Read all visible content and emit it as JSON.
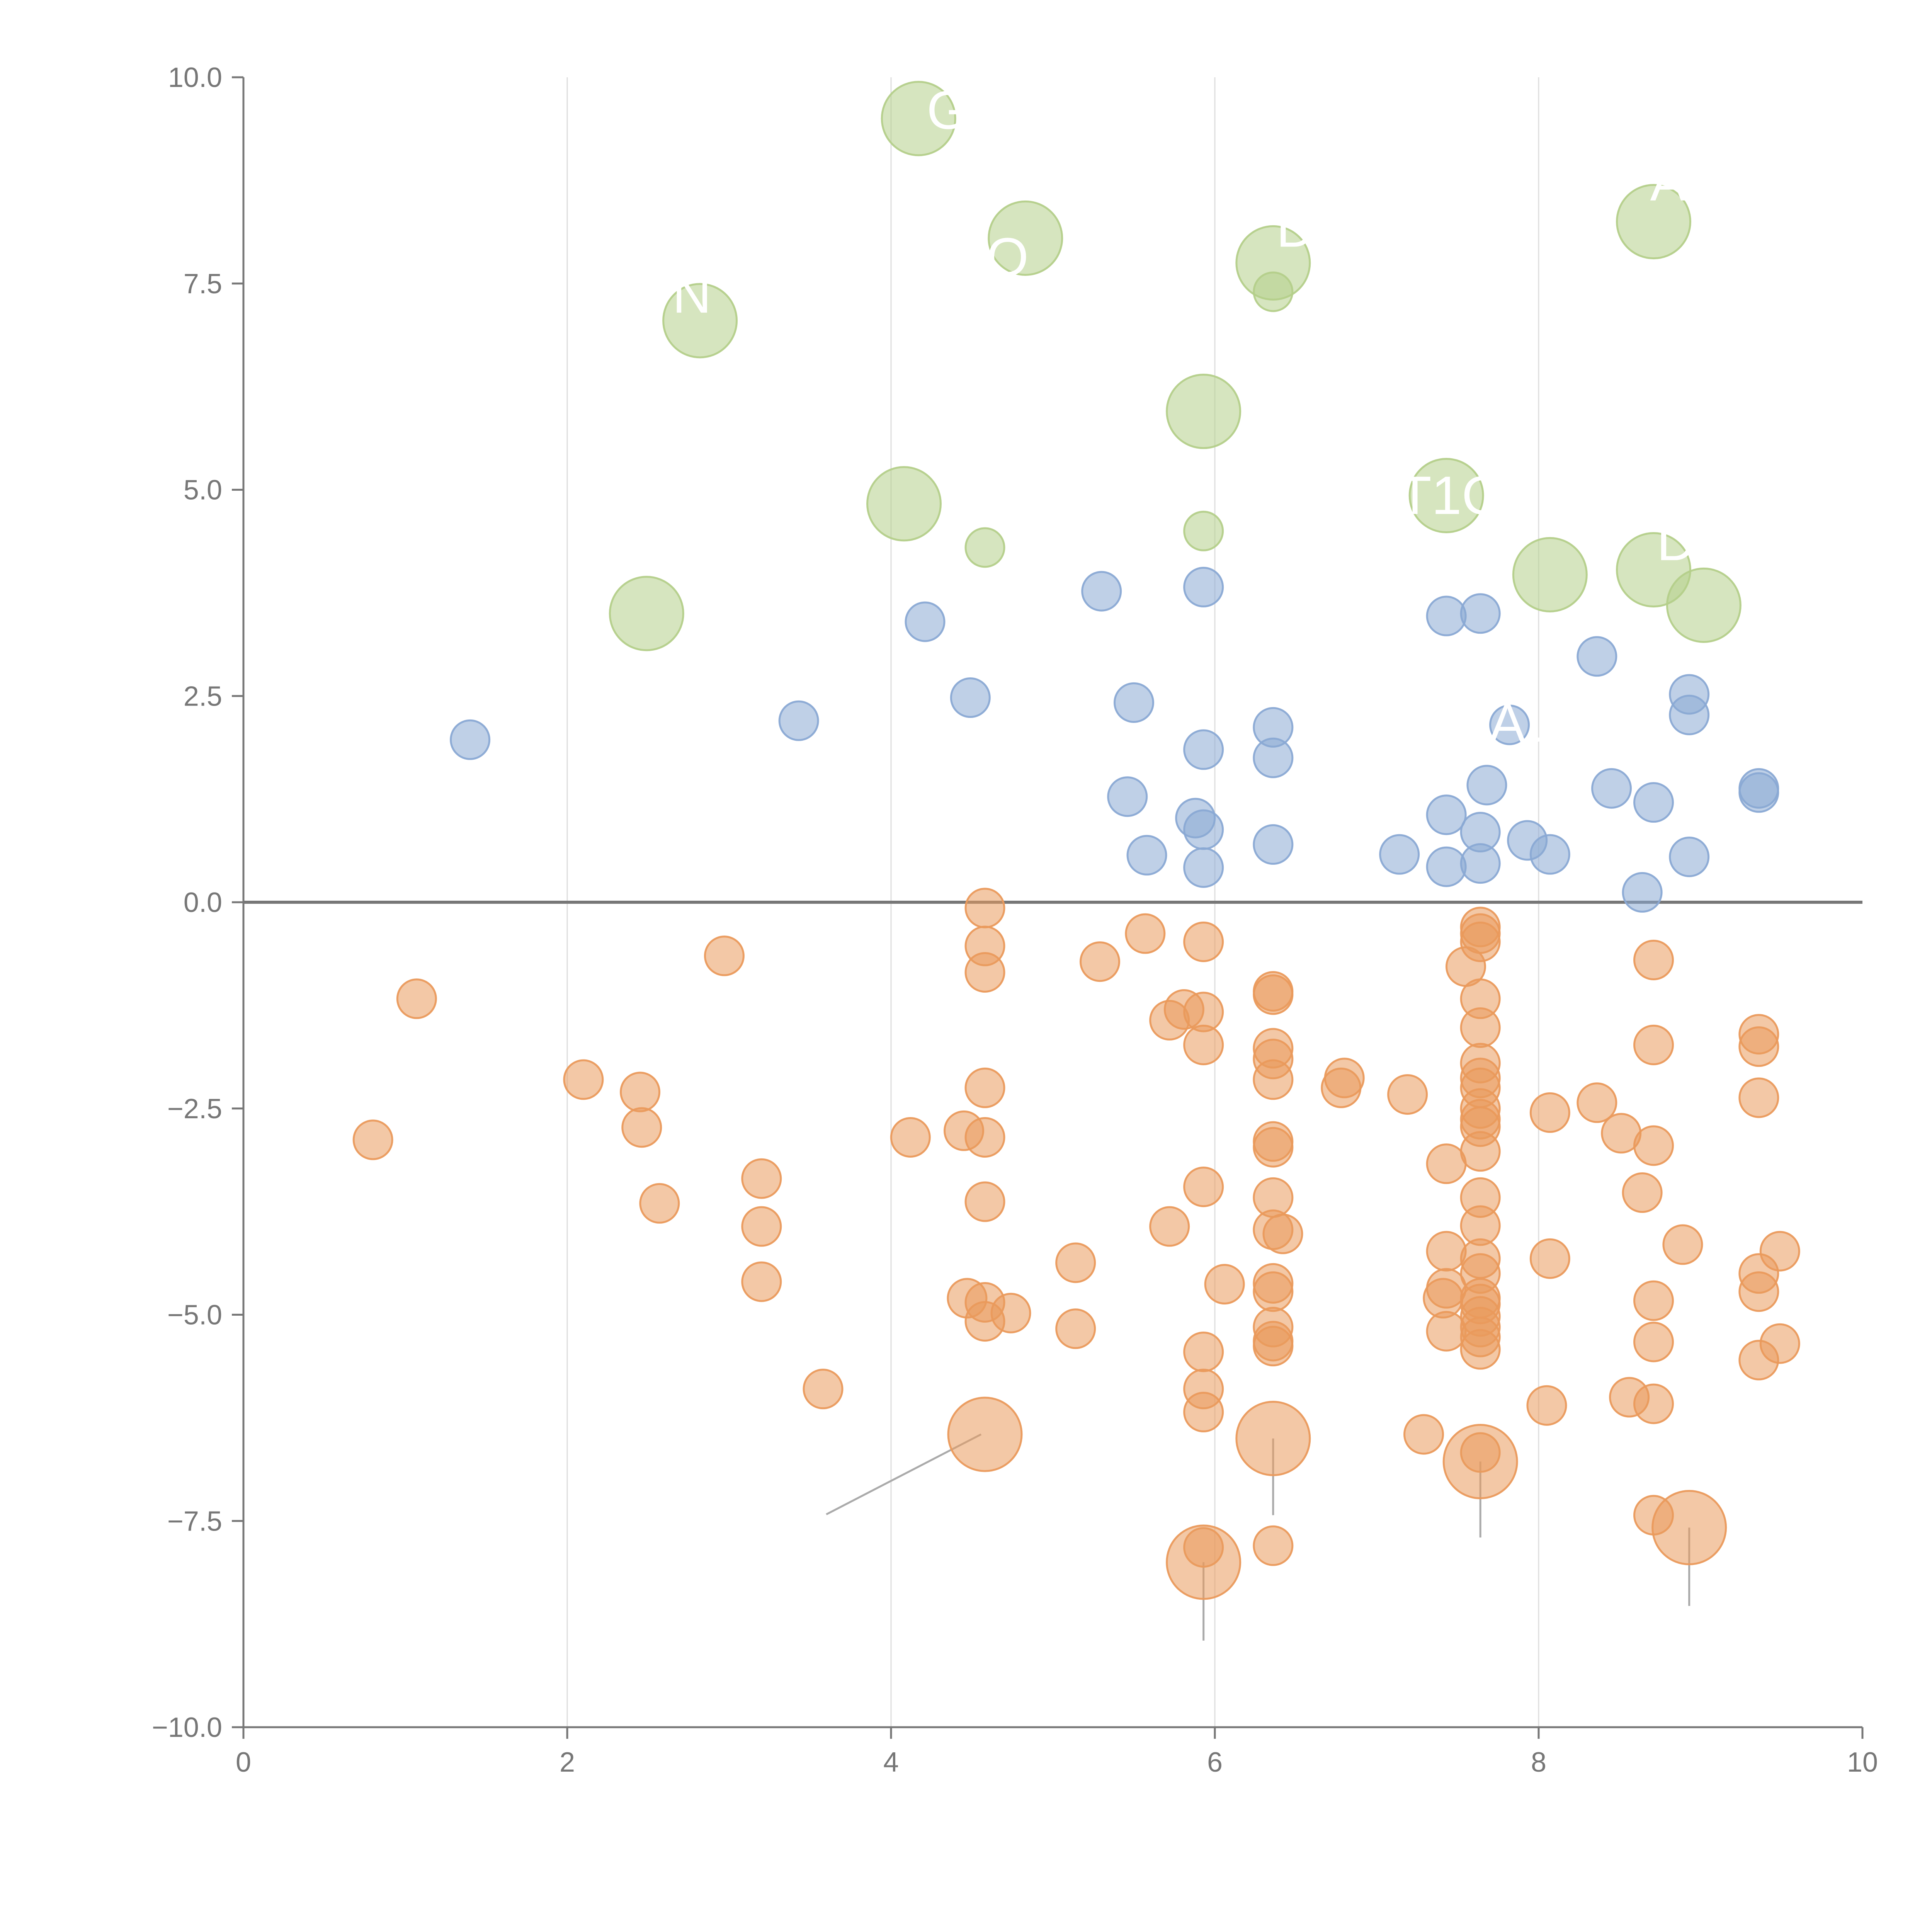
{
  "chart_data": {
    "type": "scatter",
    "title": "",
    "xlabel": "",
    "ylabel": "",
    "xlim": [
      0,
      10
    ],
    "ylim": [
      -10,
      10
    ],
    "xticks": [
      "0",
      "2",
      "4",
      "6",
      "8",
      "10"
    ],
    "yticks": [
      "10.0",
      "7.5",
      "5.0",
      "2.5",
      "0.0",
      "−2.5",
      "−5.0",
      "−7.5",
      "−10.0"
    ],
    "xtick_values": [
      0,
      2,
      4,
      6,
      8,
      10
    ],
    "ytick_values": [
      10,
      7.5,
      5,
      2.5,
      0,
      -2.5,
      -5,
      -7.5,
      -10
    ],
    "grid": "vertical",
    "reference_line_y": 0,
    "colors": {
      "green": "#b4cf8a",
      "blue": "#8aa9d4",
      "orange": "#ea9a5c",
      "axis": "#777777",
      "grid": "#dddddd",
      "zero_line": "#777777",
      "label": "#ffffff"
    },
    "series": [
      {
        "name": "green",
        "color": "#b4cf8a",
        "points": [
          {
            "x": 4.17,
            "y": 9.5,
            "size": "large"
          },
          {
            "x": 4.83,
            "y": 8.05,
            "size": "large"
          },
          {
            "x": 6.36,
            "y": 7.75,
            "size": "large"
          },
          {
            "x": 6.36,
            "y": 7.4,
            "size": "small"
          },
          {
            "x": 8.71,
            "y": 8.25,
            "size": "large"
          },
          {
            "x": 2.82,
            "y": 7.05,
            "size": "large"
          },
          {
            "x": 5.93,
            "y": 5.95,
            "size": "large"
          },
          {
            "x": 4.08,
            "y": 4.83,
            "size": "large"
          },
          {
            "x": 4.58,
            "y": 4.3,
            "size": "small"
          },
          {
            "x": 5.93,
            "y": 4.5,
            "size": "small"
          },
          {
            "x": 7.43,
            "y": 4.93,
            "size": "large"
          },
          {
            "x": 8.07,
            "y": 3.97,
            "size": "large"
          },
          {
            "x": 8.71,
            "y": 4.03,
            "size": "large"
          },
          {
            "x": 9.02,
            "y": 3.6,
            "size": "large"
          },
          {
            "x": 2.49,
            "y": 3.5,
            "size": "large"
          }
        ]
      },
      {
        "name": "blue",
        "color": "#8aa9d4",
        "points": [
          {
            "x": 1.4,
            "y": 1.97
          },
          {
            "x": 3.43,
            "y": 2.2
          },
          {
            "x": 4.21,
            "y": 3.4
          },
          {
            "x": 4.49,
            "y": 2.48
          },
          {
            "x": 5.3,
            "y": 3.77
          },
          {
            "x": 5.93,
            "y": 3.82
          },
          {
            "x": 5.5,
            "y": 2.42
          },
          {
            "x": 5.46,
            "y": 1.28
          },
          {
            "x": 5.58,
            "y": 0.57
          },
          {
            "x": 5.93,
            "y": 1.85
          },
          {
            "x": 5.88,
            "y": 1.02
          },
          {
            "x": 5.93,
            "y": 0.88
          },
          {
            "x": 5.93,
            "y": 0.42
          },
          {
            "x": 6.36,
            "y": 2.12
          },
          {
            "x": 6.36,
            "y": 1.75
          },
          {
            "x": 6.36,
            "y": 0.7
          },
          {
            "x": 7.43,
            "y": 3.47
          },
          {
            "x": 7.64,
            "y": 3.5
          },
          {
            "x": 7.14,
            "y": 0.58
          },
          {
            "x": 7.43,
            "y": 1.06
          },
          {
            "x": 7.43,
            "y": 0.43
          },
          {
            "x": 7.64,
            "y": 0.85
          },
          {
            "x": 7.64,
            "y": 0.47
          },
          {
            "x": 7.68,
            "y": 1.42
          },
          {
            "x": 7.82,
            "y": 2.15
          },
          {
            "x": 7.93,
            "y": 0.75
          },
          {
            "x": 8.07,
            "y": 0.58
          },
          {
            "x": 8.36,
            "y": 2.98
          },
          {
            "x": 8.45,
            "y": 1.38
          },
          {
            "x": 8.71,
            "y": 1.21
          },
          {
            "x": 8.64,
            "y": 0.12
          },
          {
            "x": 8.93,
            "y": 2.52
          },
          {
            "x": 8.93,
            "y": 2.27
          },
          {
            "x": 8.93,
            "y": 0.55
          },
          {
            "x": 9.36,
            "y": 1.38
          },
          {
            "x": 9.36,
            "y": 1.33
          }
        ]
      },
      {
        "name": "orange",
        "color": "#ea9a5c",
        "points": [
          {
            "x": 0.8,
            "y": -2.88
          },
          {
            "x": 1.07,
            "y": -1.17
          },
          {
            "x": 2.1,
            "y": -2.15
          },
          {
            "x": 2.45,
            "y": -2.3
          },
          {
            "x": 2.46,
            "y": -2.73
          },
          {
            "x": 2.57,
            "y": -3.65
          },
          {
            "x": 2.97,
            "y": -0.65
          },
          {
            "x": 3.2,
            "y": -3.35
          },
          {
            "x": 3.2,
            "y": -3.93
          },
          {
            "x": 3.2,
            "y": -4.6
          },
          {
            "x": 3.58,
            "y": -5.9
          },
          {
            "x": 4.12,
            "y": -2.85
          },
          {
            "x": 4.45,
            "y": -2.77
          },
          {
            "x": 4.58,
            "y": -0.07
          },
          {
            "x": 4.58,
            "y": -0.53
          },
          {
            "x": 4.58,
            "y": -0.85
          },
          {
            "x": 4.58,
            "y": -2.25
          },
          {
            "x": 4.58,
            "y": -2.85
          },
          {
            "x": 4.58,
            "y": -3.63
          },
          {
            "x": 4.47,
            "y": -4.8
          },
          {
            "x": 4.58,
            "y": -4.85
          },
          {
            "x": 4.58,
            "y": -5.08
          },
          {
            "x": 4.74,
            "y": -4.98
          },
          {
            "x": 4.58,
            "y": -6.45,
            "size": "large",
            "leader": [
              3.6,
              -7.42
            ]
          },
          {
            "x": 5.14,
            "y": -4.37
          },
          {
            "x": 5.14,
            "y": -5.17
          },
          {
            "x": 5.29,
            "y": -0.72
          },
          {
            "x": 5.57,
            "y": -0.38
          },
          {
            "x": 5.72,
            "y": -1.43
          },
          {
            "x": 5.81,
            "y": -1.3
          },
          {
            "x": 5.72,
            "y": -3.93
          },
          {
            "x": 5.93,
            "y": -0.48
          },
          {
            "x": 5.93,
            "y": -1.33
          },
          {
            "x": 5.93,
            "y": -1.73
          },
          {
            "x": 5.93,
            "y": -3.45
          },
          {
            "x": 5.93,
            "y": -5.45
          },
          {
            "x": 5.93,
            "y": -5.9
          },
          {
            "x": 5.93,
            "y": -6.18
          },
          {
            "x": 6.06,
            "y": -4.63
          },
          {
            "x": 5.93,
            "y": -7.82
          },
          {
            "x": 5.93,
            "y": -8.0,
            "size": "large",
            "leader": [
              5.93,
              -8.95
            ]
          },
          {
            "x": 6.36,
            "y": -1.08
          },
          {
            "x": 6.36,
            "y": -1.12
          },
          {
            "x": 6.36,
            "y": -1.77
          },
          {
            "x": 6.36,
            "y": -1.9
          },
          {
            "x": 6.36,
            "y": -2.15
          },
          {
            "x": 6.36,
            "y": -2.9
          },
          {
            "x": 6.36,
            "y": -2.97
          },
          {
            "x": 6.36,
            "y": -3.58
          },
          {
            "x": 6.36,
            "y": -3.97
          },
          {
            "x": 6.42,
            "y": -4.02
          },
          {
            "x": 6.36,
            "y": -4.62
          },
          {
            "x": 6.36,
            "y": -4.72
          },
          {
            "x": 6.36,
            "y": -5.15
          },
          {
            "x": 6.36,
            "y": -5.32
          },
          {
            "x": 6.36,
            "y": -5.38
          },
          {
            "x": 6.36,
            "y": -6.5,
            "size": "large",
            "leader": [
              6.36,
              -7.43
            ]
          },
          {
            "x": 6.36,
            "y": -7.8
          },
          {
            "x": 6.78,
            "y": -2.25
          },
          {
            "x": 6.8,
            "y": -2.13
          },
          {
            "x": 7.19,
            "y": -2.33
          },
          {
            "x": 7.29,
            "y": -6.45
          },
          {
            "x": 7.43,
            "y": -3.17
          },
          {
            "x": 7.43,
            "y": -4.23
          },
          {
            "x": 7.43,
            "y": -4.68
          },
          {
            "x": 7.41,
            "y": -4.8
          },
          {
            "x": 7.43,
            "y": -5.2
          },
          {
            "x": 7.55,
            "y": -0.78
          },
          {
            "x": 7.64,
            "y": -0.3
          },
          {
            "x": 7.64,
            "y": -0.38
          },
          {
            "x": 7.64,
            "y": -0.48
          },
          {
            "x": 7.64,
            "y": -1.17
          },
          {
            "x": 7.64,
            "y": -1.52
          },
          {
            "x": 7.64,
            "y": -1.95
          },
          {
            "x": 7.64,
            "y": -2.13
          },
          {
            "x": 7.64,
            "y": -2.25
          },
          {
            "x": 7.64,
            "y": -2.5
          },
          {
            "x": 7.64,
            "y": -2.63
          },
          {
            "x": 7.64,
            "y": -2.72
          },
          {
            "x": 7.64,
            "y": -3.02
          },
          {
            "x": 7.64,
            "y": -3.58
          },
          {
            "x": 7.64,
            "y": -3.92
          },
          {
            "x": 7.64,
            "y": -4.32
          },
          {
            "x": 7.64,
            "y": -4.5
          },
          {
            "x": 7.64,
            "y": -4.8
          },
          {
            "x": 7.64,
            "y": -4.87
          },
          {
            "x": 7.64,
            "y": -5.02
          },
          {
            "x": 7.64,
            "y": -5.15
          },
          {
            "x": 7.64,
            "y": -5.27
          },
          {
            "x": 7.64,
            "y": -5.42
          },
          {
            "x": 7.64,
            "y": -6.67
          },
          {
            "x": 7.64,
            "y": -6.78,
            "size": "large",
            "leader": [
              7.64,
              -7.7
            ]
          },
          {
            "x": 8.05,
            "y": -6.1
          },
          {
            "x": 8.07,
            "y": -2.55
          },
          {
            "x": 8.07,
            "y": -4.32
          },
          {
            "x": 8.36,
            "y": -2.43
          },
          {
            "x": 8.51,
            "y": -2.8
          },
          {
            "x": 8.56,
            "y": -6.0
          },
          {
            "x": 8.64,
            "y": -3.52
          },
          {
            "x": 8.71,
            "y": -0.7
          },
          {
            "x": 8.71,
            "y": -1.73
          },
          {
            "x": 8.71,
            "y": -2.95
          },
          {
            "x": 8.71,
            "y": -4.83
          },
          {
            "x": 8.71,
            "y": -5.33
          },
          {
            "x": 8.71,
            "y": -6.08
          },
          {
            "x": 8.71,
            "y": -7.43
          },
          {
            "x": 8.89,
            "y": -4.15
          },
          {
            "x": 8.93,
            "y": -7.58,
            "size": "large",
            "leader": [
              8.93,
              -8.53
            ]
          },
          {
            "x": 9.36,
            "y": -1.6
          },
          {
            "x": 9.36,
            "y": -1.75
          },
          {
            "x": 9.36,
            "y": -2.37
          },
          {
            "x": 9.36,
            "y": -4.5
          },
          {
            "x": 9.36,
            "y": -4.72
          },
          {
            "x": 9.36,
            "y": -5.55
          },
          {
            "x": 9.49,
            "y": -4.23
          },
          {
            "x": 9.49,
            "y": -5.35
          }
        ]
      }
    ],
    "annotations": [
      {
        "text": "G",
        "x": 4.35,
        "y": 9.55
      },
      {
        "text": "O",
        "x": 4.72,
        "y": 7.77
      },
      {
        "text": "D",
        "x": 6.5,
        "y": 8.12
      },
      {
        "text": "T1C",
        "x": 7.45,
        "y": 4.88
      },
      {
        "text": "AL",
        "x": 7.9,
        "y": 2.12
      },
      {
        "text": "D",
        "x": 8.85,
        "y": 4.32
      },
      {
        "text": "A",
        "x": 8.8,
        "y": 8.68
      },
      {
        "text": "N",
        "x": 2.77,
        "y": 7.32
      }
    ]
  }
}
